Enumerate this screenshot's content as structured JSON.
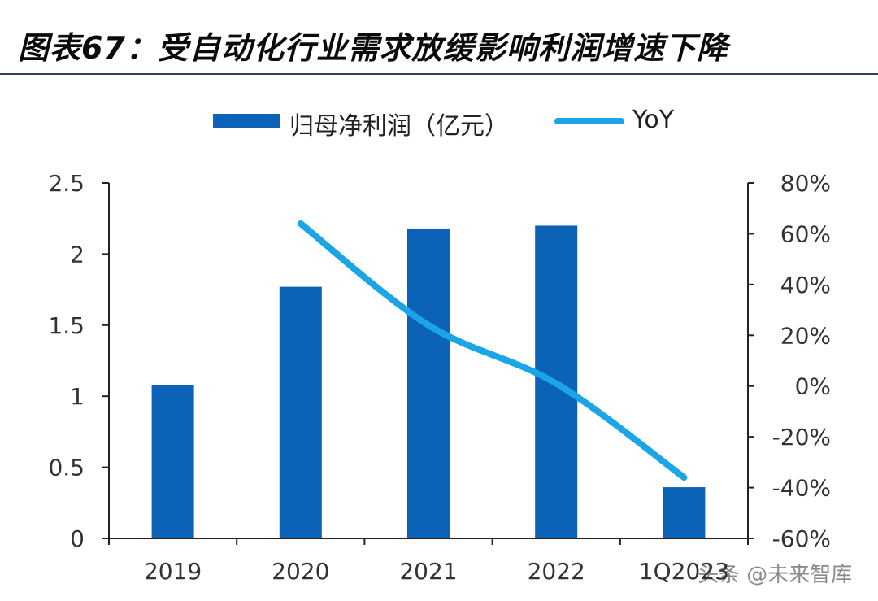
{
  "title": "图表67：受自动化行业需求放缓影响利润增速下降",
  "legend": {
    "bar_label": "归母净利润（亿元）",
    "line_label": "YoY"
  },
  "watermark": "头条 @未来智库",
  "colors": {
    "bar": "#0b62b6",
    "line": "#1ba5e6",
    "axis": "#222222"
  },
  "chart_data": {
    "type": "bar",
    "categories": [
      "2019",
      "2020",
      "2021",
      "2022",
      "1Q2023"
    ],
    "series": [
      {
        "name": "归母净利润（亿元）",
        "type": "bar",
        "axis": "left",
        "values": [
          1.08,
          1.77,
          2.18,
          2.2,
          0.36
        ]
      },
      {
        "name": "YoY",
        "type": "line",
        "axis": "right",
        "values": [
          null,
          0.64,
          0.24,
          0.01,
          -0.36
        ]
      }
    ],
    "left_axis": {
      "ylim": [
        0,
        2.5
      ],
      "ticks": [
        "0",
        "0.5",
        "1",
        "1.5",
        "2",
        "2.5"
      ]
    },
    "right_axis": {
      "ylim": [
        -0.6,
        0.8
      ],
      "ticks": [
        "-60%",
        "-40%",
        "-20%",
        "0%",
        "20%",
        "40%",
        "60%",
        "80%"
      ]
    },
    "x_tick_labels": [
      "2019",
      "2020",
      "2021",
      "2022",
      "1Q2023"
    ],
    "grid": false,
    "legend_position": "top"
  }
}
